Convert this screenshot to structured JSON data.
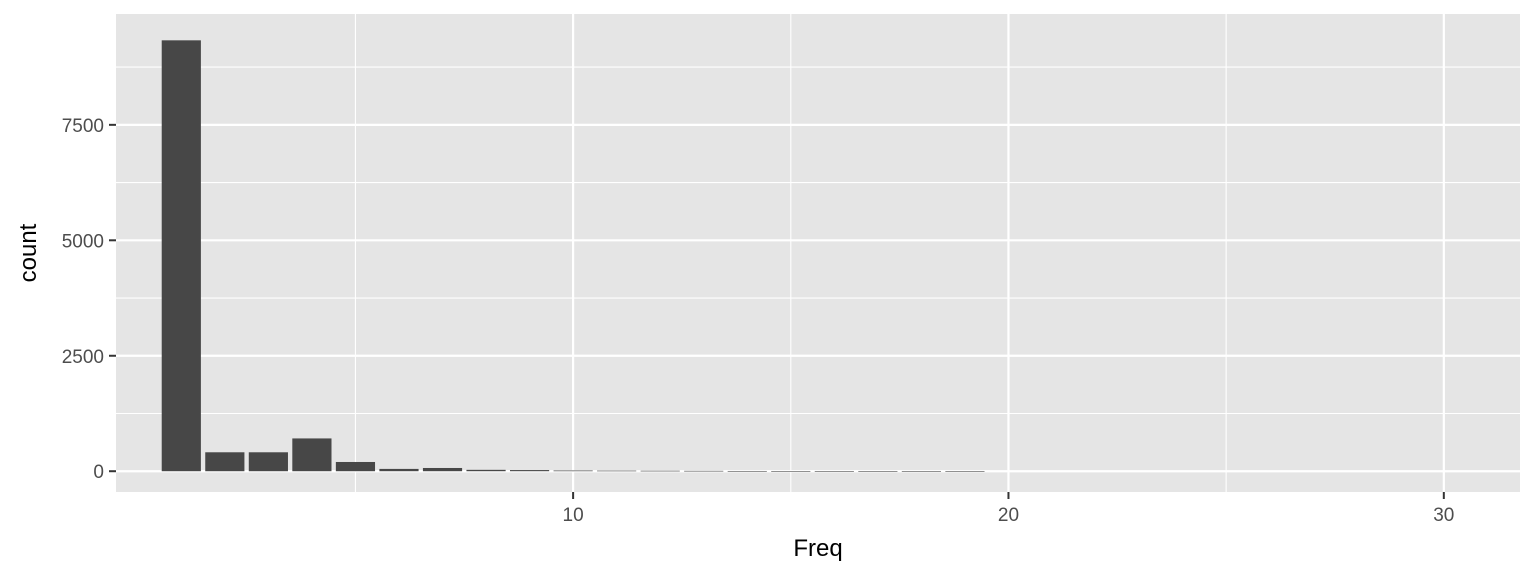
{
  "chart_data": {
    "type": "bar",
    "xlabel": "Freq",
    "ylabel": "count",
    "xlim": [
      -0.5,
      31.75
    ],
    "ylim": [
      -450,
      9900
    ],
    "xticks": [
      10,
      20,
      30
    ],
    "xtick_labels": [
      "10",
      "20",
      "30"
    ],
    "xminor": [
      5,
      15,
      25
    ],
    "yticks": [
      0,
      2500,
      5000,
      7500
    ],
    "ytick_labels": [
      "0",
      "2500",
      "5000",
      "7500"
    ],
    "yminor": [
      1250,
      3750,
      6250,
      8750
    ],
    "grid": true,
    "x": [
      1,
      2,
      3,
      4,
      5,
      6,
      7,
      8,
      9,
      10,
      11,
      12,
      13,
      14,
      15,
      16,
      17,
      18,
      19
    ],
    "values": [
      9330,
      410,
      410,
      710,
      200,
      50,
      70,
      30,
      25,
      15,
      12,
      10,
      8,
      5,
      4,
      3,
      2,
      2,
      1
    ],
    "bar_width": 0.9,
    "bar_color": "#474747",
    "panel_color": "#e5e5e5",
    "grid_color": "#ffffff"
  }
}
